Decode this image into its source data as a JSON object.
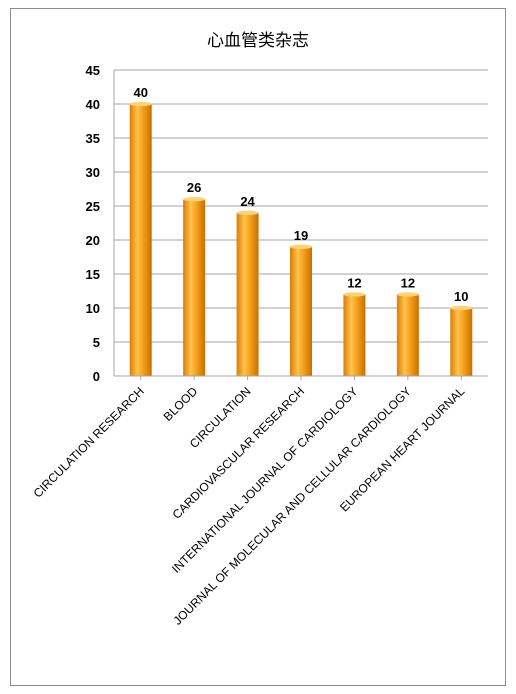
{
  "chart_data": {
    "type": "bar",
    "title": "心血管类杂志",
    "categories": [
      "CIRCULATION RESEARCH",
      "BLOOD",
      "CIRCULATION",
      "CARDIOVASCULAR RESEARCH",
      "INTERNATIONAL JOURNAL OF CARDIOLOGY",
      "JOURNAL OF MOLECULAR AND CELLULAR CARDIOLOGY",
      "EUROPEAN HEART JOURNAL"
    ],
    "values": [
      40,
      26,
      24,
      19,
      12,
      12,
      10
    ],
    "ylim": [
      0,
      45
    ],
    "yticks": [
      0,
      5,
      10,
      15,
      20,
      25,
      30,
      35,
      40,
      45
    ],
    "grid": true,
    "bar_color": "#f29b12",
    "bar_dark": "#d97d04",
    "bar_light": "#ffd27a"
  }
}
